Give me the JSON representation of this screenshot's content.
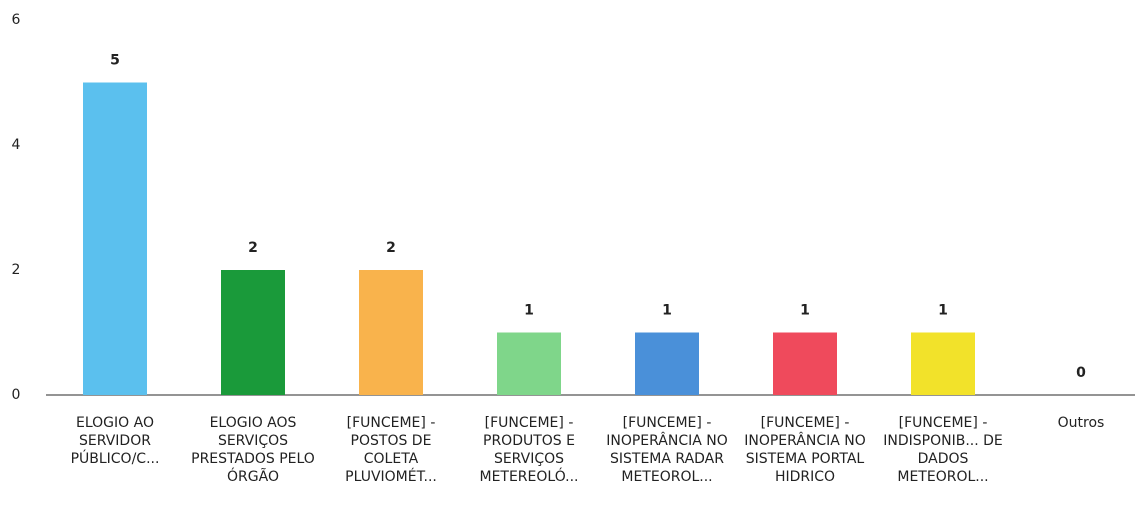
{
  "chart_data": {
    "type": "bar",
    "categories": [
      "ELOGIO AO SERVIDOR PÚBLICO/C...",
      "ELOGIO AOS SERVIÇOS PRESTADOS PELO ÓRGÃO",
      "[FUNCEME] - POSTOS DE COLETA PLUVIOMÉT...",
      "[FUNCEME] - PRODUTOS E SERVIÇOS METEREOLÓ...",
      "[FUNCEME] - INOPERÂNCIA NO SISTEMA RADAR METEOROL...",
      "[FUNCEME] - INOPERÂNCIA NO SISTEMA PORTAL HIDRICO",
      "[FUNCEME] - INDISPONIB... DE DADOS METEOROL...",
      "Outros"
    ],
    "values": [
      5,
      2,
      2,
      1,
      1,
      1,
      1,
      0
    ],
    "colors": [
      "#5bc0ee",
      "#1a9a3a",
      "#f9b34c",
      "#7fd68a",
      "#4a90d9",
      "#ef4a5c",
      "#f2e22a",
      "#888888"
    ],
    "ylim": [
      0,
      6
    ],
    "yticks": [
      0,
      2,
      4,
      6
    ],
    "grid": false
  }
}
